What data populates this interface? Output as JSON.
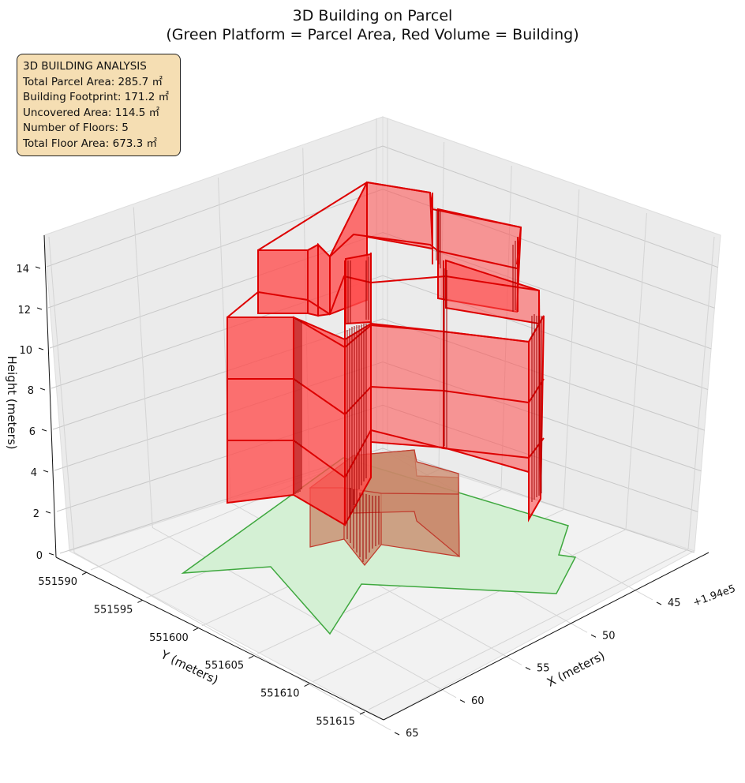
{
  "chart_data": {
    "type": "3d-polygons",
    "title_lines": [
      "3D Building on Parcel",
      "(Green Platform = Parcel Area, Red Volume = Building)"
    ],
    "axes": {
      "x": {
        "label": "X (meters)",
        "offset_text": "+1.94e5",
        "ticks": [
          "45",
          "50",
          "55",
          "60",
          "65"
        ]
      },
      "y": {
        "label": "Y (meters)",
        "ticks": [
          "551590",
          "551595",
          "551600",
          "551605",
          "551610",
          "551615"
        ]
      },
      "z": {
        "label": "Height (meters)",
        "ticks": [
          "0",
          "2",
          "4",
          "6",
          "8",
          "10",
          "12",
          "14"
        ]
      }
    },
    "grid": true,
    "colors": {
      "parcel_fill": "#d4f0d4",
      "parcel_edge": "#2ca02c",
      "building_fill": "#ff4c4c",
      "building_edge": "#dd0000",
      "ground_floor_fill": "#c9876a",
      "ground_floor_edge": "#c0392b",
      "info_box_bg": "#f5deb3"
    },
    "annotation": {
      "title": "3D BUILDING ANALYSIS",
      "lines": [
        "Total Parcel Area: 285.7 ㎡",
        "Building Footprint: 171.2 ㎡",
        "Uncovered Area: 114.5 ㎡",
        "Number of Floors: 5",
        "Total Floor Area: 673.3 ㎡"
      ]
    },
    "summary": {
      "total_parcel_area_m2": 285.7,
      "building_footprint_m2": 171.2,
      "uncovered_area_m2": 114.5,
      "number_of_floors": 5,
      "total_floor_area_m2": 673.3
    }
  }
}
